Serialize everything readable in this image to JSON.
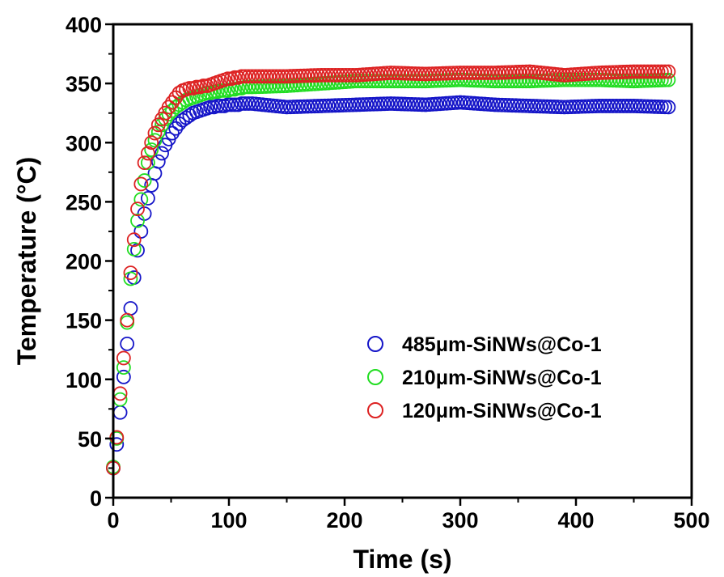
{
  "chart_data": {
    "type": "scatter",
    "xlabel": "Time (s)",
    "ylabel": "Temperature (°C)",
    "xlim": [
      0,
      500
    ],
    "ylim": [
      0,
      400
    ],
    "xticks": [
      0,
      100,
      200,
      300,
      400,
      500
    ],
    "yticks": [
      0,
      50,
      100,
      150,
      200,
      250,
      300,
      350,
      400
    ],
    "xtick_labels": [
      "0",
      "100",
      "200",
      "300",
      "400",
      "500"
    ],
    "ytick_labels": [
      "0",
      "50",
      "100",
      "150",
      "200",
      "250",
      "300",
      "350",
      "400"
    ],
    "grid": false,
    "legend_position": "bottom-right",
    "marker": "open-circle",
    "sample_interval_s": 3,
    "end_time_s": 480,
    "series": [
      {
        "name": "485μm-SiNWs@Co-1",
        "color": "#1515c8",
        "x": [
          0,
          3,
          6,
          9,
          12,
          15,
          18,
          21,
          24,
          27,
          30,
          33,
          36,
          39,
          42,
          45,
          48,
          51,
          54,
          57,
          60,
          63,
          66,
          69,
          72,
          75,
          78,
          81,
          84,
          87,
          90,
          93,
          96,
          99,
          102,
          105,
          108,
          111,
          114,
          117,
          120,
          150,
          180,
          210,
          240,
          270,
          300,
          330,
          360,
          390,
          420,
          450,
          480
        ],
        "y": [
          25,
          45,
          72,
          102,
          130,
          160,
          186,
          209,
          225,
          240,
          253,
          264,
          274,
          284,
          291,
          298,
          303,
          308,
          312,
          316,
          319,
          321,
          323,
          325,
          326,
          327,
          328,
          329,
          330,
          330,
          331,
          331,
          331,
          332,
          332,
          332,
          332,
          333,
          333,
          333,
          333,
          330,
          331,
          332,
          333,
          332,
          334,
          332,
          331,
          330,
          331,
          331,
          330
        ]
      },
      {
        "name": "210μm-SiNWs@Co-1",
        "color": "#22dd22",
        "x": [
          0,
          3,
          6,
          9,
          12,
          15,
          18,
          21,
          24,
          27,
          30,
          33,
          36,
          39,
          42,
          45,
          48,
          51,
          54,
          57,
          60,
          63,
          66,
          69,
          72,
          75,
          78,
          81,
          84,
          87,
          90,
          93,
          96,
          99,
          102,
          105,
          108,
          111,
          114,
          117,
          120,
          150,
          180,
          210,
          240,
          270,
          300,
          330,
          360,
          390,
          420,
          450,
          480
        ],
        "y": [
          26,
          50,
          83,
          110,
          148,
          185,
          210,
          234,
          252,
          268,
          283,
          294,
          302,
          309,
          315,
          320,
          324,
          327,
          330,
          332,
          334,
          336,
          337,
          338,
          339,
          340,
          341,
          342,
          342,
          343,
          343,
          344,
          344,
          344,
          345,
          345,
          346,
          346,
          347,
          347,
          347,
          348,
          350,
          352,
          352,
          352,
          353,
          352,
          352,
          353,
          353,
          352,
          353
        ]
      },
      {
        "name": "120μm-SiNWs@Co-1",
        "color": "#dd2222",
        "x": [
          0,
          3,
          6,
          9,
          12,
          15,
          18,
          21,
          24,
          27,
          30,
          33,
          36,
          39,
          42,
          45,
          48,
          51,
          54,
          57,
          60,
          63,
          66,
          69,
          72,
          75,
          78,
          81,
          84,
          87,
          90,
          93,
          96,
          99,
          102,
          105,
          108,
          111,
          114,
          117,
          120,
          150,
          180,
          210,
          240,
          270,
          300,
          330,
          360,
          390,
          420,
          450,
          480
        ],
        "y": [
          25,
          51,
          88,
          118,
          150,
          190,
          218,
          244,
          265,
          283,
          291,
          300,
          308,
          315,
          320,
          325,
          330,
          334,
          338,
          342,
          344,
          345,
          346,
          346,
          347,
          347,
          348,
          348,
          349,
          350,
          351,
          352,
          353,
          354,
          354,
          355,
          355,
          356,
          356,
          356,
          356,
          356,
          357,
          357,
          359,
          358,
          359,
          359,
          360,
          357,
          359,
          360,
          360
        ]
      }
    ]
  }
}
